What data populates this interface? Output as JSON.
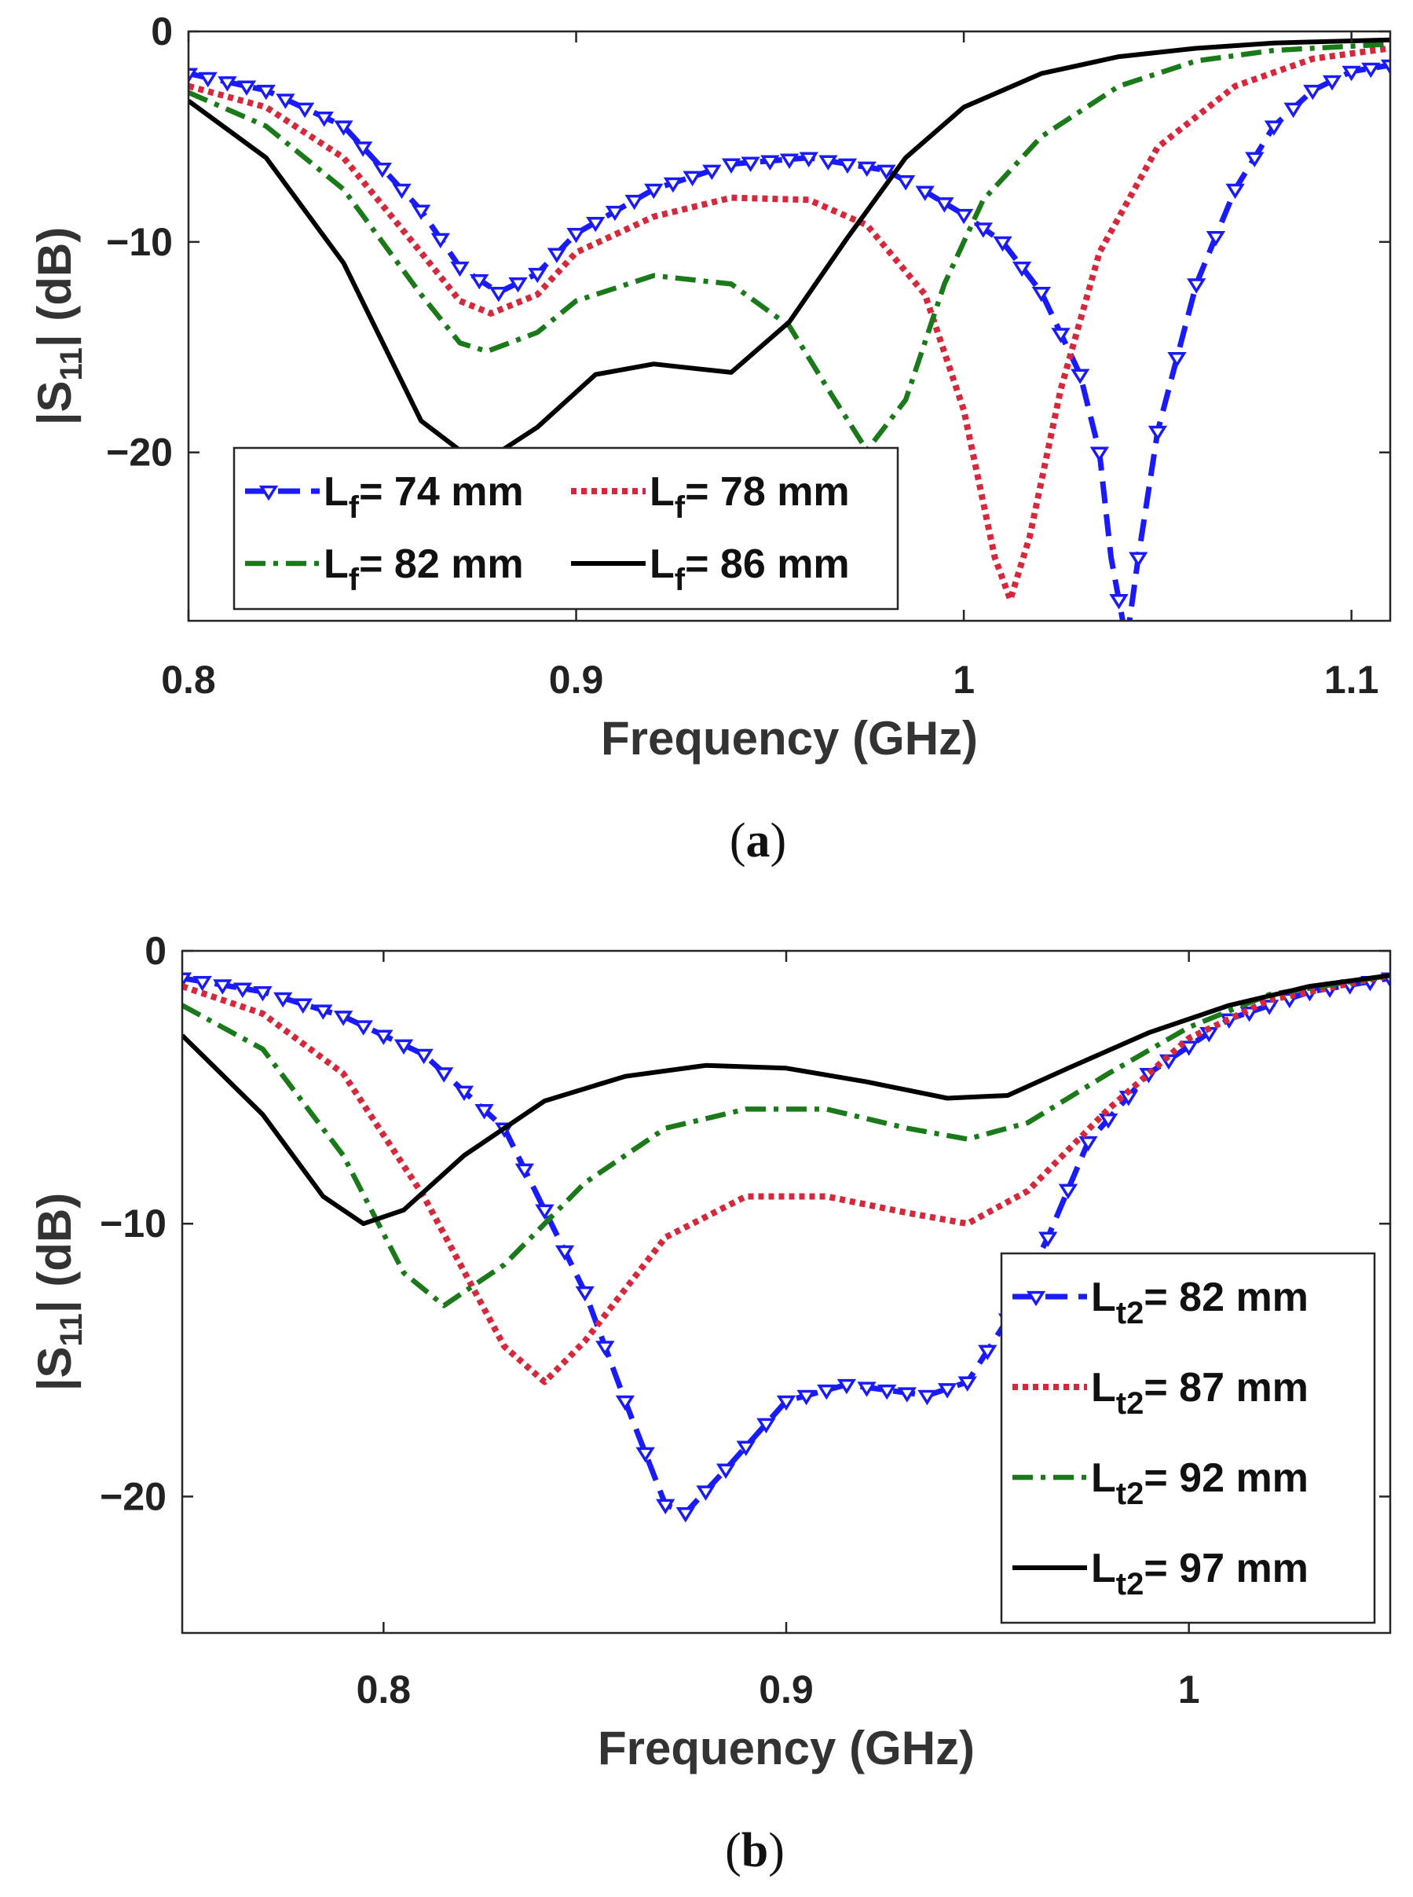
{
  "chart_data": [
    {
      "type": "line",
      "panel_label": "a",
      "xlabel": "Frequency (GHz)",
      "ylabel": "|S11| (dB)",
      "xlim": [
        0.8,
        1.11
      ],
      "ylim": [
        -28,
        0
      ],
      "xticks": [
        0.8,
        0.9,
        1.0,
        1.1
      ],
      "xtick_labels": [
        "0.8",
        "0.9",
        "1",
        "1.1"
      ],
      "yticks": [
        0,
        -10,
        -20
      ],
      "ytick_labels": [
        "0",
        "−10",
        "−20"
      ],
      "legend": {
        "position": "bottom-left",
        "columns": 2
      },
      "series": [
        {
          "label_main": "L",
          "label_sub": "f",
          "label_rest": "= 74 mm",
          "color": "#1a1aff",
          "style": "dash-triangle",
          "points": [
            [
              0.8,
              -2
            ],
            [
              0.82,
              -2.8
            ],
            [
              0.84,
              -4.5
            ],
            [
              0.86,
              -8.5
            ],
            [
              0.87,
              -11.2
            ],
            [
              0.88,
              -12.4
            ],
            [
              0.89,
              -11.5
            ],
            [
              0.9,
              -9.6
            ],
            [
              0.92,
              -7.5
            ],
            [
              0.94,
              -6.3
            ],
            [
              0.96,
              -6
            ],
            [
              0.98,
              -6.6
            ],
            [
              0.99,
              -7.6
            ],
            [
              1.0,
              -8.7
            ],
            [
              1.01,
              -10
            ],
            [
              1.02,
              -12.4
            ],
            [
              1.03,
              -16.3
            ],
            [
              1.035,
              -20
            ],
            [
              1.038,
              -25
            ],
            [
              1.042,
              -29
            ],
            [
              1.045,
              -25
            ],
            [
              1.05,
              -19
            ],
            [
              1.06,
              -12
            ],
            [
              1.07,
              -7.5
            ],
            [
              1.08,
              -4.5
            ],
            [
              1.09,
              -2.8
            ],
            [
              1.1,
              -1.9
            ],
            [
              1.11,
              -1.6
            ]
          ]
        },
        {
          "label_main": "L",
          "label_sub": "f",
          "label_rest": "= 78 mm",
          "color": "#d6283a",
          "style": "dotted",
          "points": [
            [
              0.8,
              -2.6
            ],
            [
              0.82,
              -3.6
            ],
            [
              0.84,
              -6
            ],
            [
              0.86,
              -10.5
            ],
            [
              0.87,
              -12.8
            ],
            [
              0.878,
              -13.4
            ],
            [
              0.89,
              -12.5
            ],
            [
              0.9,
              -10.5
            ],
            [
              0.92,
              -8.8
            ],
            [
              0.94,
              -7.9
            ],
            [
              0.96,
              -8
            ],
            [
              0.975,
              -9.2
            ],
            [
              0.99,
              -12.5
            ],
            [
              1.0,
              -18
            ],
            [
              1.008,
              -25
            ],
            [
              1.012,
              -27
            ],
            [
              1.017,
              -24
            ],
            [
              1.025,
              -17
            ],
            [
              1.035,
              -10.5
            ],
            [
              1.05,
              -5.5
            ],
            [
              1.07,
              -2.6
            ],
            [
              1.09,
              -1.3
            ],
            [
              1.11,
              -0.8
            ]
          ]
        },
        {
          "label_main": "L",
          "label_sub": "f",
          "label_rest": "= 82 mm",
          "color": "#1a7a1a",
          "style": "dash-dot",
          "points": [
            [
              0.8,
              -2.9
            ],
            [
              0.82,
              -4.5
            ],
            [
              0.84,
              -7.5
            ],
            [
              0.86,
              -12.5
            ],
            [
              0.87,
              -14.8
            ],
            [
              0.877,
              -15.2
            ],
            [
              0.89,
              -14.3
            ],
            [
              0.9,
              -12.8
            ],
            [
              0.92,
              -11.6
            ],
            [
              0.94,
              -12
            ],
            [
              0.955,
              -14
            ],
            [
              0.965,
              -17
            ],
            [
              0.975,
              -19.9
            ],
            [
              0.985,
              -17.5
            ],
            [
              0.995,
              -12
            ],
            [
              1.005,
              -8
            ],
            [
              1.02,
              -5
            ],
            [
              1.04,
              -2.6
            ],
            [
              1.06,
              -1.4
            ],
            [
              1.08,
              -0.9
            ],
            [
              1.11,
              -0.6
            ]
          ]
        },
        {
          "label_main": "L",
          "label_sub": "f",
          "label_rest": "= 86 mm",
          "color": "#000000",
          "style": "solid",
          "points": [
            [
              0.8,
              -3.3
            ],
            [
              0.82,
              -6
            ],
            [
              0.84,
              -11
            ],
            [
              0.86,
              -18.5
            ],
            [
              0.875,
              -20.6
            ],
            [
              0.89,
              -18.8
            ],
            [
              0.905,
              -16.3
            ],
            [
              0.92,
              -15.8
            ],
            [
              0.94,
              -16.2
            ],
            [
              0.955,
              -13.8
            ],
            [
              0.97,
              -9.8
            ],
            [
              0.985,
              -6
            ],
            [
              1.0,
              -3.6
            ],
            [
              1.02,
              -2
            ],
            [
              1.04,
              -1.2
            ],
            [
              1.06,
              -0.8
            ],
            [
              1.08,
              -0.55
            ],
            [
              1.11,
              -0.4
            ]
          ]
        }
      ]
    },
    {
      "type": "line",
      "panel_label": "b",
      "xlabel": "Frequency (GHz)",
      "ylabel": "|S11| (dB)",
      "xlim": [
        0.75,
        1.05
      ],
      "ylim": [
        -25,
        0
      ],
      "xticks": [
        0.8,
        0.9,
        1.0
      ],
      "xtick_labels": [
        "0.8",
        "0.9",
        "1"
      ],
      "yticks": [
        0,
        -10,
        -20
      ],
      "ytick_labels": [
        "0",
        "−10",
        "−20"
      ],
      "legend": {
        "position": "bottom-right",
        "columns": 1
      },
      "series": [
        {
          "label_main": "L",
          "label_sub": "t2",
          "label_rest": "= 82 mm",
          "color": "#1a1aff",
          "style": "dash-triangle",
          "points": [
            [
              0.75,
              -1
            ],
            [
              0.77,
              -1.5
            ],
            [
              0.79,
              -2.4
            ],
            [
              0.81,
              -3.8
            ],
            [
              0.83,
              -6.5
            ],
            [
              0.85,
              -12.5
            ],
            [
              0.86,
              -16.5
            ],
            [
              0.87,
              -20.3
            ],
            [
              0.875,
              -20.6
            ],
            [
              0.885,
              -19
            ],
            [
              0.9,
              -16.5
            ],
            [
              0.915,
              -15.9
            ],
            [
              0.935,
              -16.3
            ],
            [
              0.945,
              -15.8
            ],
            [
              0.955,
              -13.5
            ],
            [
              0.965,
              -10.5
            ],
            [
              0.975,
              -7
            ],
            [
              0.99,
              -4.5
            ],
            [
              1.01,
              -2.5
            ],
            [
              1.03,
              -1.5
            ],
            [
              1.05,
              -1
            ]
          ]
        },
        {
          "label_main": "L",
          "label_sub": "t2",
          "label_rest": "= 87 mm",
          "color": "#d6283a",
          "style": "dotted",
          "points": [
            [
              0.75,
              -1.3
            ],
            [
              0.77,
              -2.3
            ],
            [
              0.79,
              -4.5
            ],
            [
              0.81,
              -9
            ],
            [
              0.83,
              -14.5
            ],
            [
              0.84,
              -15.8
            ],
            [
              0.85,
              -14.3
            ],
            [
              0.87,
              -10.5
            ],
            [
              0.89,
              -9
            ],
            [
              0.91,
              -9
            ],
            [
              0.93,
              -9.6
            ],
            [
              0.945,
              -10
            ],
            [
              0.96,
              -8.8
            ],
            [
              0.98,
              -5.8
            ],
            [
              1.0,
              -3.2
            ],
            [
              1.02,
              -1.8
            ],
            [
              1.05,
              -0.9
            ]
          ]
        },
        {
          "label_main": "L",
          "label_sub": "t2",
          "label_rest": "= 92 mm",
          "color": "#1a7a1a",
          "style": "dash-dot",
          "points": [
            [
              0.75,
              -2
            ],
            [
              0.77,
              -3.6
            ],
            [
              0.79,
              -7.5
            ],
            [
              0.805,
              -11.8
            ],
            [
              0.815,
              -13
            ],
            [
              0.83,
              -11.5
            ],
            [
              0.85,
              -8.5
            ],
            [
              0.87,
              -6.5
            ],
            [
              0.89,
              -5.8
            ],
            [
              0.91,
              -5.8
            ],
            [
              0.93,
              -6.5
            ],
            [
              0.945,
              -6.9
            ],
            [
              0.96,
              -6.3
            ],
            [
              0.98,
              -4.5
            ],
            [
              1.0,
              -2.8
            ],
            [
              1.02,
              -1.6
            ],
            [
              1.05,
              -0.9
            ]
          ]
        },
        {
          "label_main": "L",
          "label_sub": "t2",
          "label_rest": "= 97 mm",
          "color": "#000000",
          "style": "solid",
          "points": [
            [
              0.75,
              -3.1
            ],
            [
              0.77,
              -6
            ],
            [
              0.785,
              -9
            ],
            [
              0.795,
              -10
            ],
            [
              0.805,
              -9.5
            ],
            [
              0.82,
              -7.5
            ],
            [
              0.84,
              -5.5
            ],
            [
              0.86,
              -4.6
            ],
            [
              0.88,
              -4.2
            ],
            [
              0.9,
              -4.3
            ],
            [
              0.92,
              -4.8
            ],
            [
              0.94,
              -5.4
            ],
            [
              0.955,
              -5.3
            ],
            [
              0.97,
              -4.3
            ],
            [
              0.99,
              -3
            ],
            [
              1.01,
              -2
            ],
            [
              1.03,
              -1.3
            ],
            [
              1.05,
              -0.9
            ]
          ]
        }
      ]
    }
  ]
}
